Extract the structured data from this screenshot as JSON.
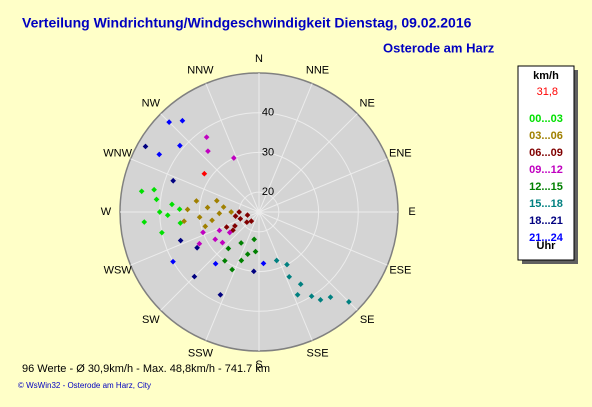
{
  "chart_data": {
    "type": "polar-scatter",
    "title": "Verteilung Windrichtung/Windgeschwindigkeit  Dienstag, 09.02.2016",
    "subtitle": "Osterode am Harz",
    "categories": [
      "N",
      "NNE",
      "NE",
      "ENE",
      "E",
      "ESE",
      "SE",
      "SSE",
      "S",
      "SSW",
      "SW",
      "WSW",
      "W",
      "WNW",
      "NW",
      "NNW"
    ],
    "rlim": [
      15,
      50
    ],
    "rticks": [
      20,
      30,
      40
    ],
    "legend_title": "km/h",
    "legend_footer": "Uhr",
    "current": {
      "color": "#ff0000",
      "directions": [
        305
      ],
      "values": [
        31.8
      ],
      "value_labels": [
        "31,8"
      ]
    },
    "series": [
      {
        "name": "00...03",
        "color": "#00e000",
        "directions": [
          277,
          270,
          265,
          282,
          275,
          268,
          272,
          258,
          280,
          262
        ],
        "values": [
          41,
          40,
          44,
          42,
          37,
          38,
          35,
          40,
          45,
          35
        ]
      },
      {
        "name": "03...06",
        "color": "#a08000",
        "directions": [
          272,
          265,
          275,
          260,
          280,
          268,
          255,
          285,
          270,
          263,
          278
        ],
        "values": [
          33,
          30,
          28,
          27,
          31,
          25,
          29,
          26,
          22,
          34,
          24
        ]
      },
      {
        "name": "06...09",
        "color": "#800000",
        "directions": [
          240,
          250,
          230,
          260,
          245,
          220,
          235,
          255,
          270
        ],
        "values": [
          22,
          20,
          19,
          21,
          24,
          18,
          23,
          18,
          20
        ]
      },
      {
        "name": "09...12",
        "color": "#c000c0",
        "directions": [
          245,
          238,
          250,
          235,
          242,
          230,
          325,
          320,
          335
        ],
        "values": [
          26,
          28,
          30,
          24,
          32,
          27,
          38,
          35,
          30
        ]
      },
      {
        "name": "12...15",
        "color": "#008000",
        "directions": [
          210,
          200,
          195,
          215,
          190,
          205,
          220,
          185
        ],
        "values": [
          24,
          28,
          26,
          30,
          22,
          31,
          27,
          25
        ]
      },
      {
        "name": "15...18",
        "color": "#008080",
        "directions": [
          160,
          155,
          150,
          148,
          145,
          155,
          140,
          152,
          135
        ],
        "values": [
          28,
          33,
          36,
          40,
          42,
          38,
          43,
          30,
          47
        ]
      },
      {
        "name": "18...21",
        "color": "#000080",
        "directions": [
          300,
          290,
          250,
          225,
          205,
          185,
          240
        ],
        "values": [
          48,
          38,
          36,
          38,
          38,
          30,
          33
        ]
      },
      {
        "name": "21...24",
        "color": "#0000ff",
        "directions": [
          315,
          320,
          300,
          310,
          240,
          175,
          220
        ],
        "values": [
          47,
          45,
          44,
          41,
          40,
          28,
          32
        ]
      }
    ],
    "summary": "96 Werte   -   Ø 30,9km/h   -   Max. 48,8km/h   -   741.7 km",
    "footer": "© WsWin32  -  Osterode am Harz, City"
  }
}
